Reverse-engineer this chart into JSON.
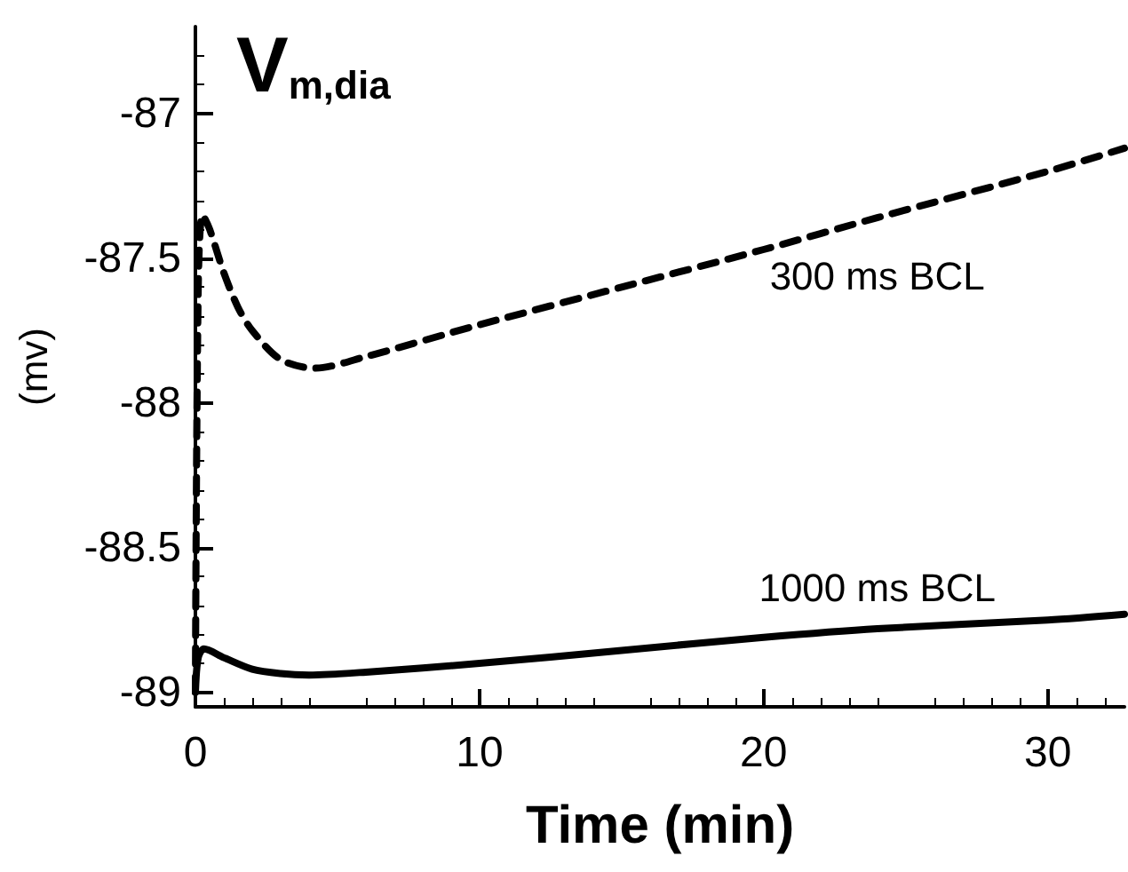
{
  "chart_data": {
    "type": "line",
    "title": "V$_{m,dia}$",
    "xlabel": "Time (min)",
    "ylabel": "(mv)",
    "xlim": [
      0,
      32.7
    ],
    "xticks": [
      0,
      10,
      20,
      30
    ],
    "ylim": [
      -89.05,
      -86.7
    ],
    "yticks": [
      -89,
      -88.5,
      -88,
      -87.5,
      -87
    ],
    "grid": false,
    "legend": false,
    "marker": "none",
    "series": [
      {
        "name": "300 ms BCL",
        "color": "#000000",
        "line_style": "dashed",
        "x": [
          0,
          0.1,
          0.25,
          0.5,
          1,
          1.5,
          2,
          3,
          4.2,
          6,
          10,
          15,
          20,
          24,
          30,
          32.7
        ],
        "values": [
          -89,
          -87.6,
          -87.35,
          -87.4,
          -87.55,
          -87.67,
          -87.75,
          -87.85,
          -87.88,
          -87.84,
          -87.73,
          -87.6,
          -87.47,
          -87.36,
          -87.2,
          -87.12
        ]
      },
      {
        "name": "1000 ms BCL",
        "color": "#000000",
        "line_style": "solid",
        "x": [
          0,
          0.1,
          0.3,
          1,
          2,
          3,
          4,
          6,
          10,
          15,
          20,
          24,
          30,
          32.7
        ],
        "values": [
          -89,
          -88.88,
          -88.85,
          -88.88,
          -88.92,
          -88.935,
          -88.94,
          -88.93,
          -88.9,
          -88.855,
          -88.81,
          -88.78,
          -88.75,
          -88.73
        ]
      }
    ]
  }
}
